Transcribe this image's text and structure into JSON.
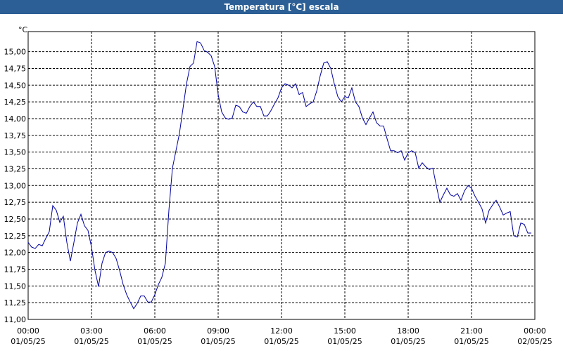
{
  "chart_data": {
    "type": "line",
    "title": "Temperatura [°C] escala",
    "y_unit": "°C",
    "x": [
      0,
      10,
      20,
      30,
      40,
      50,
      60,
      70,
      80,
      90,
      100,
      110,
      120,
      130,
      140,
      150,
      160,
      170,
      180,
      190,
      200,
      210,
      220,
      230,
      240,
      250,
      260,
      270,
      280,
      290,
      300,
      310,
      320,
      330,
      340,
      350,
      360,
      370,
      380,
      390,
      400,
      410,
      420,
      430,
      440,
      450,
      460,
      470,
      480,
      490,
      500,
      510,
      520,
      530,
      540,
      550,
      560,
      570,
      580,
      590,
      600,
      610,
      620,
      630,
      640,
      650,
      660,
      670,
      680,
      690,
      700,
      710,
      720,
      730,
      740,
      750,
      760,
      770,
      780,
      790,
      800,
      810,
      820,
      830,
      840,
      850,
      860,
      870,
      880,
      890,
      900,
      910,
      920,
      930,
      940,
      950,
      960,
      970,
      980,
      990,
      1000,
      1010,
      1020,
      1030,
      1040,
      1050,
      1060,
      1070,
      1080,
      1090,
      1100,
      1110,
      1120,
      1130,
      1140,
      1150,
      1160,
      1170,
      1180,
      1190,
      1200,
      1210,
      1220,
      1230,
      1240,
      1250,
      1260,
      1270,
      1280,
      1290,
      1300,
      1310,
      1320,
      1330,
      1340,
      1350,
      1360,
      1370,
      1380,
      1390,
      1400,
      1410,
      1420,
      1430
    ],
    "series": [
      {
        "name": "Temperatura",
        "color": "#0000a0",
        "values": [
          12.15,
          12.08,
          12.06,
          12.12,
          12.1,
          12.21,
          12.31,
          12.7,
          12.63,
          12.45,
          12.54,
          12.15,
          11.87,
          12.15,
          12.44,
          12.57,
          12.4,
          12.33,
          12.08,
          11.73,
          11.49,
          11.84,
          12.0,
          12.02,
          12.0,
          11.91,
          11.73,
          11.52,
          11.37,
          11.26,
          11.16,
          11.24,
          11.35,
          11.35,
          11.26,
          11.26,
          11.37,
          11.52,
          11.63,
          11.84,
          12.63,
          13.26,
          13.52,
          13.78,
          14.15,
          14.52,
          14.78,
          14.83,
          15.15,
          15.13,
          15.02,
          14.99,
          14.94,
          14.78,
          14.36,
          14.1,
          14.01,
          13.99,
          14.01,
          14.2,
          14.18,
          14.1,
          14.08,
          14.18,
          14.25,
          14.18,
          14.18,
          14.04,
          14.04,
          14.12,
          14.22,
          14.31,
          14.46,
          14.52,
          14.5,
          14.46,
          14.52,
          14.36,
          14.39,
          14.18,
          14.22,
          14.25,
          14.41,
          14.64,
          14.83,
          14.85,
          14.75,
          14.52,
          14.33,
          14.25,
          14.33,
          14.31,
          14.46,
          14.25,
          14.18,
          14.01,
          13.91,
          14.01,
          14.1,
          13.94,
          13.89,
          13.89,
          13.7,
          13.52,
          13.52,
          13.49,
          13.52,
          13.38,
          13.49,
          13.52,
          13.49,
          13.26,
          13.34,
          13.28,
          13.24,
          13.26,
          13.0,
          12.75,
          12.86,
          12.96,
          12.86,
          12.84,
          12.88,
          12.78,
          12.92,
          13.0,
          12.96,
          12.84,
          12.75,
          12.65,
          12.44,
          12.63,
          12.71,
          12.78,
          12.68,
          12.56,
          12.59,
          12.61,
          12.25,
          12.23,
          12.44,
          12.42,
          12.29,
          12.29
        ]
      }
    ],
    "xlim": [
      0,
      1440
    ],
    "xticks": [
      {
        "value": 0,
        "label": "00:00",
        "date": "01/05/25"
      },
      {
        "value": 180,
        "label": "03:00",
        "date": "01/05/25"
      },
      {
        "value": 360,
        "label": "06:00",
        "date": "01/05/25"
      },
      {
        "value": 540,
        "label": "09:00",
        "date": "01/05/25"
      },
      {
        "value": 720,
        "label": "12:00",
        "date": "01/05/25"
      },
      {
        "value": 900,
        "label": "15:00",
        "date": "01/05/25"
      },
      {
        "value": 1080,
        "label": "18:00",
        "date": "01/05/25"
      },
      {
        "value": 1260,
        "label": "21:00",
        "date": "01/05/25"
      },
      {
        "value": 1440,
        "label": "00:00",
        "date": "02/05/25"
      }
    ],
    "ylim": [
      11.0,
      15.3
    ],
    "yticks": [
      {
        "value": 11.0,
        "label": "11,00"
      },
      {
        "value": 11.25,
        "label": "11,25"
      },
      {
        "value": 11.5,
        "label": "11,50"
      },
      {
        "value": 11.75,
        "label": "11,75"
      },
      {
        "value": 12.0,
        "label": "12,00"
      },
      {
        "value": 12.25,
        "label": "12,25"
      },
      {
        "value": 12.5,
        "label": "12,50"
      },
      {
        "value": 12.75,
        "label": "12,75"
      },
      {
        "value": 13.0,
        "label": "13,00"
      },
      {
        "value": 13.25,
        "label": "13,25"
      },
      {
        "value": 13.5,
        "label": "13,50"
      },
      {
        "value": 13.75,
        "label": "13,75"
      },
      {
        "value": 14.0,
        "label": "14,00"
      },
      {
        "value": 14.25,
        "label": "14,25"
      },
      {
        "value": 14.5,
        "label": "14,50"
      },
      {
        "value": 14.75,
        "label": "14,75"
      },
      {
        "value": 15.0,
        "label": "15,00"
      }
    ],
    "grid": true
  }
}
